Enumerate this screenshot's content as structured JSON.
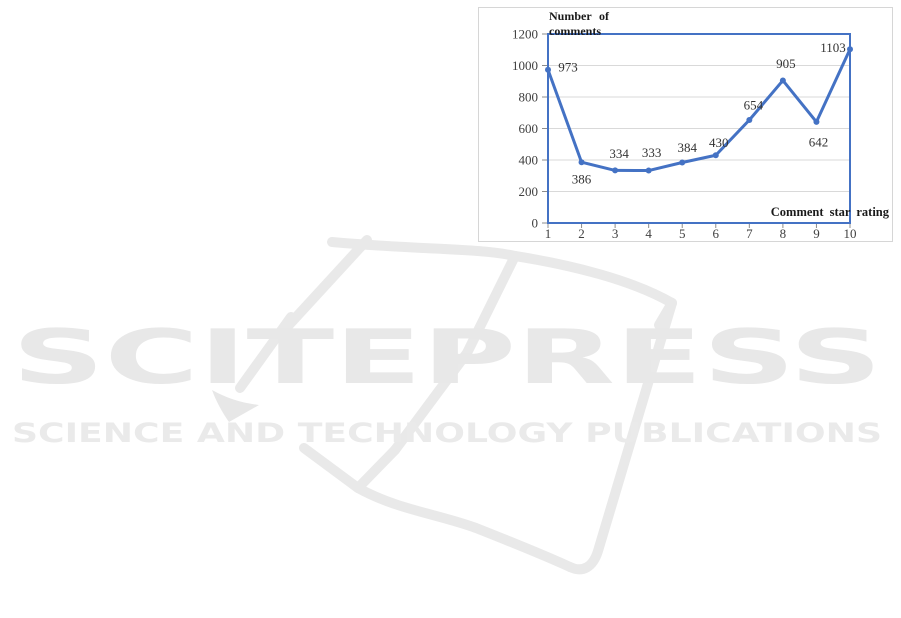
{
  "watermark": {
    "wordmark": "SCITEPRESS",
    "tagline": "SCIENCE AND TECHNOLOGY PUBLICATIONS",
    "color": "#e8e8e8"
  },
  "chart_data": {
    "type": "line",
    "title": "",
    "ylabel": "Number of comments",
    "xlabel": "Comment star rating",
    "categories": [
      "1",
      "2",
      "3",
      "4",
      "5",
      "6",
      "7",
      "8",
      "9",
      "10"
    ],
    "values": [
      973,
      386,
      334,
      333,
      384,
      430,
      654,
      905,
      642,
      1103
    ],
    "data_labels": [
      "973",
      "386",
      "334",
      "333",
      "384",
      "430",
      "654",
      "905",
      "642",
      "1103"
    ],
    "ylim": [
      0,
      1200
    ],
    "yticks": [
      0,
      200,
      400,
      600,
      800,
      1000,
      1200
    ],
    "grid": true,
    "legend": "none",
    "line_color": "#4472C4",
    "grid_color": "#d9d9d9",
    "tick_color": "#8c8c8c",
    "tick_label_color": "#404040",
    "data_label_color": "#333333",
    "plot_border_color": "#4472C4",
    "figure_border_color": "#d6d6d6"
  }
}
